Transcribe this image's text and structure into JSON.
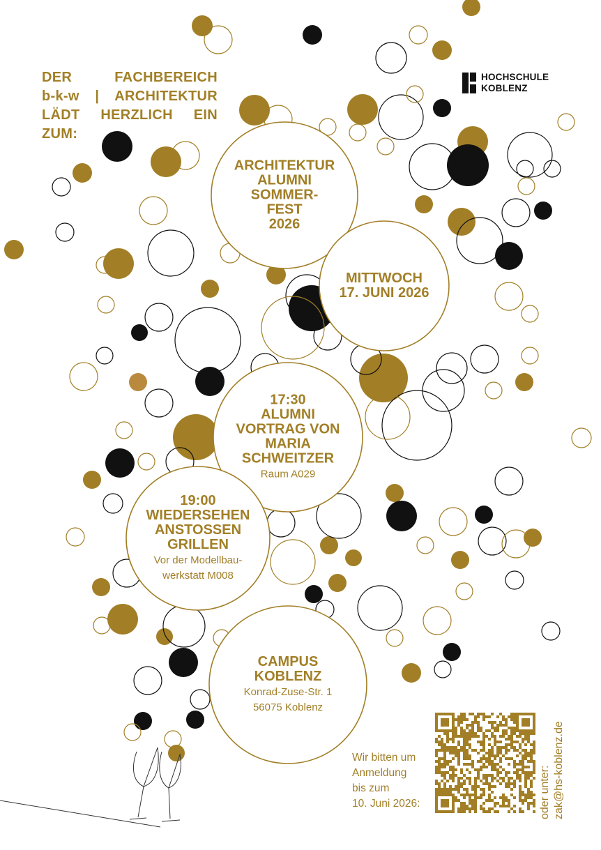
{
  "intro": {
    "lines": [
      "DER FACHBEREICH",
      "b-k-w | ARCHITEKTUR",
      "LÄDT HERZLICH EIN",
      "ZUM:"
    ]
  },
  "logo": {
    "lines": [
      "HOCHSCHULE",
      "KOBLENZ"
    ]
  },
  "events": [
    {
      "lines": [
        "ARCHITEKTUR",
        "ALUMNI",
        "SOMMER-",
        "FEST",
        "2026"
      ]
    },
    {
      "lines": [
        "MITTWOCH",
        "17. JUNI 2026"
      ]
    },
    {
      "lines": [
        "17:30",
        "ALUMNI",
        "VORTRAG VON",
        "MARIA",
        "SCHWEITZER"
      ],
      "details": [
        "Raum A029"
      ]
    },
    {
      "lines": [
        "19:00",
        "WIEDERSEHEN",
        "ANSTOSSEN",
        "GRILLEN"
      ],
      "details": [
        "Vor der Modellbau-",
        "werkstatt M008"
      ]
    },
    {
      "lines": [
        "CAMPUS",
        "KOBLENZ"
      ],
      "details": [
        "Konrad-Zuse-Str. 1",
        "56075 Koblenz"
      ]
    }
  ],
  "registration": {
    "lines": [
      "Wir bitten um",
      "Anmeldung",
      "bis zum",
      "10. Juni 2026:"
    ]
  },
  "contact": {
    "lines": [
      "oder unter:",
      "zak@hs-koblenz.de"
    ]
  }
}
